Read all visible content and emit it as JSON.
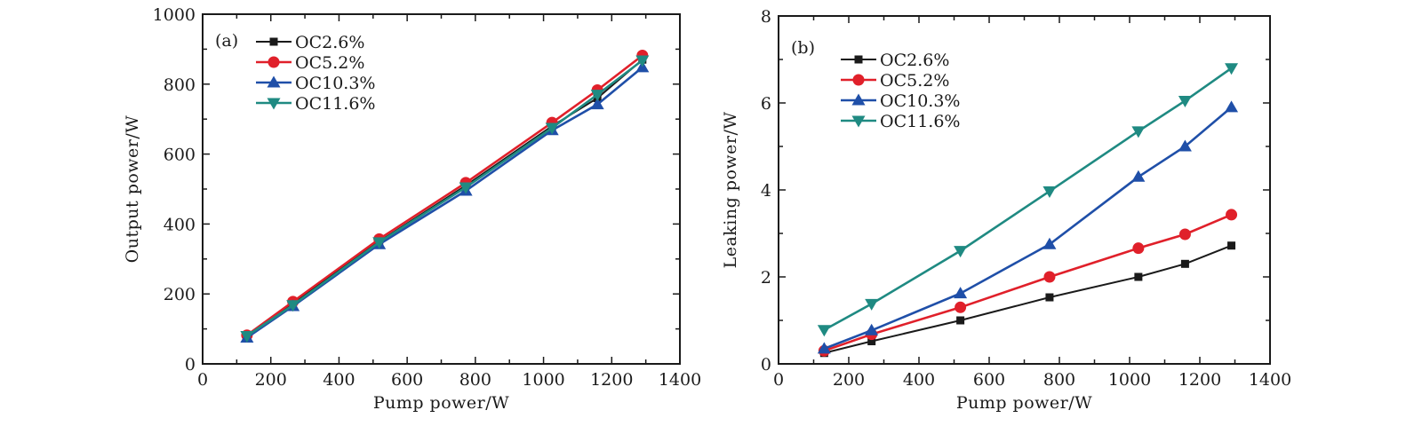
{
  "chart_data": [
    {
      "type": "line",
      "panel_label": "(a)",
      "title": "",
      "xlabel": "Pump power/W",
      "ylabel": "Output power/W",
      "xlim": [
        0,
        1400
      ],
      "ylim": [
        0,
        1000
      ],
      "xticks": [
        0,
        200,
        400,
        600,
        800,
        1000,
        1200,
        1400
      ],
      "yticks": [
        0,
        200,
        400,
        600,
        800,
        1000
      ],
      "xtick_labels": [
        "0",
        "200",
        "400",
        "600",
        "800",
        "1000",
        "1200",
        "1400"
      ],
      "ytick_labels": [
        "0",
        "200",
        "400",
        "600",
        "800",
        "1000"
      ],
      "grid": false,
      "legend_position": "top-left",
      "x": [
        130,
        265,
        518,
        772,
        1025,
        1158,
        1290
      ],
      "series": [
        {
          "name": "OC2.6%",
          "color": "#1a1a1a",
          "marker": "square",
          "values": [
            80,
            175,
            350,
            510,
            680,
            760,
            870
          ]
        },
        {
          "name": "OC5.2%",
          "color": "#e0202a",
          "marker": "circle",
          "values": [
            82,
            178,
            357,
            518,
            690,
            783,
            882
          ]
        },
        {
          "name": "OC10.3%",
          "color": "#1f4fa8",
          "marker": "triangle-up",
          "values": [
            75,
            165,
            342,
            495,
            668,
            742,
            848
          ]
        },
        {
          "name": "OC11.6%",
          "color": "#1f8a82",
          "marker": "triangle-down",
          "values": [
            80,
            168,
            348,
            505,
            675,
            770,
            868
          ]
        }
      ]
    },
    {
      "type": "line",
      "panel_label": "(b)",
      "title": "",
      "xlabel": "Pump power/W",
      "ylabel": "Leaking power/W",
      "xlim": [
        0,
        1400
      ],
      "ylim": [
        0,
        8
      ],
      "xticks": [
        0,
        200,
        400,
        600,
        800,
        1000,
        1200,
        1400
      ],
      "yticks": [
        0,
        2,
        4,
        6,
        8
      ],
      "xtick_labels": [
        "0",
        "200",
        "400",
        "600",
        "800",
        "1000",
        "1200",
        "1400"
      ],
      "ytick_labels": [
        "0",
        "2",
        "4",
        "6",
        "8"
      ],
      "grid": false,
      "legend_position": "top-left",
      "x": [
        130,
        265,
        518,
        772,
        1025,
        1158,
        1290
      ],
      "series": [
        {
          "name": "OC2.6%",
          "color": "#1a1a1a",
          "marker": "square",
          "values": [
            0.25,
            0.52,
            1.0,
            1.53,
            2.0,
            2.3,
            2.72
          ]
        },
        {
          "name": "OC5.2%",
          "color": "#e0202a",
          "marker": "circle",
          "values": [
            0.3,
            0.68,
            1.3,
            2.0,
            2.66,
            2.98,
            3.43
          ]
        },
        {
          "name": "OC10.3%",
          "color": "#1f4fa8",
          "marker": "triangle-up",
          "values": [
            0.35,
            0.77,
            1.62,
            2.75,
            4.3,
            5.0,
            5.9
          ]
        },
        {
          "name": "OC11.6%",
          "color": "#1f8a82",
          "marker": "triangle-down",
          "values": [
            0.78,
            1.38,
            2.6,
            3.97,
            5.35,
            6.05,
            6.8
          ]
        }
      ]
    }
  ]
}
